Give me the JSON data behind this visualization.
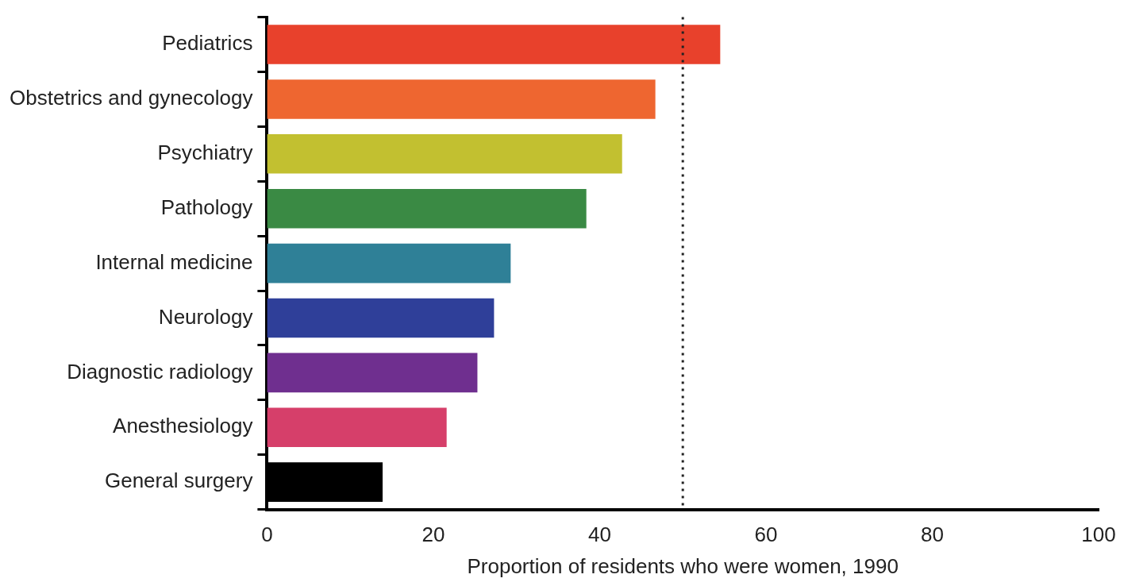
{
  "chart_data": {
    "type": "bar",
    "orientation": "horizontal",
    "xlabel": "Proportion of residents who were women, 1990",
    "categories": [
      "Pediatrics",
      "Obstetrics and gynecology",
      "Psychiatry",
      "Pathology",
      "Internal medicine",
      "Neurology",
      "Diagnostic radiology",
      "Anesthesiology",
      "General surgery"
    ],
    "values": [
      54.5,
      46.7,
      42.7,
      38.4,
      29.3,
      27.3,
      25.3,
      21.6,
      13.9
    ],
    "colors": [
      "#e8412c",
      "#ee6630",
      "#c2c030",
      "#3a8a44",
      "#2f8097",
      "#2f3f99",
      "#6f2f8f",
      "#d63f6a",
      "#000000"
    ],
    "xlim": [
      0,
      100
    ],
    "xticks": [
      0,
      20,
      40,
      60,
      80,
      100
    ],
    "grid": false,
    "legend": false,
    "ref_lines": [
      {
        "axis": "x",
        "value": 50,
        "color": "#222222",
        "line_style": "dotted"
      }
    ]
  }
}
